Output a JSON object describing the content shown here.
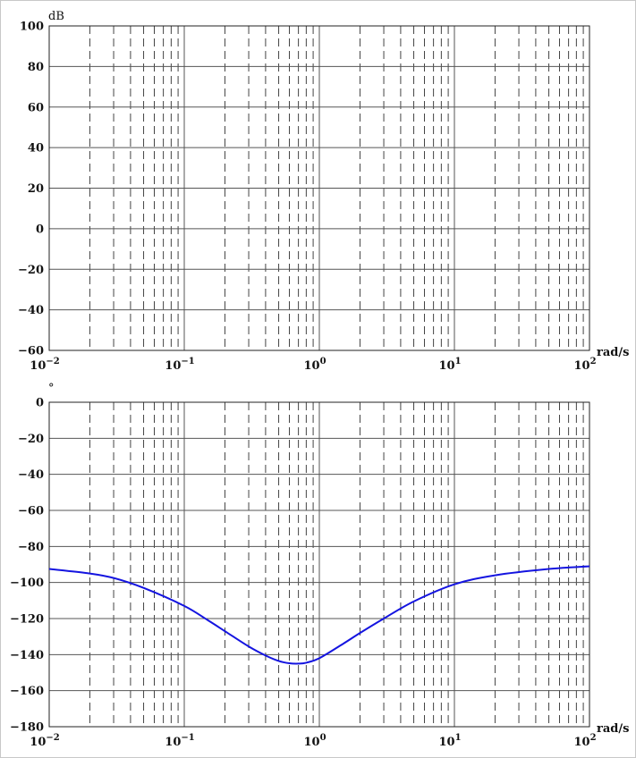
{
  "colors": {
    "series": "#1414e0",
    "grid_major": "#555555",
    "grid_minor": "#444444"
  },
  "chart_data": [
    {
      "type": "line",
      "name": "magnitude",
      "ylabel": "dB",
      "xlabel": "rad/s",
      "xscale": "log",
      "xlim": [
        0.01,
        100
      ],
      "ylim": [
        -60,
        100
      ],
      "yticks": [
        100,
        80,
        60,
        40,
        20,
        0,
        -20,
        -40,
        -60
      ],
      "ytick_labels": [
        "100",
        "80",
        "60",
        "40",
        "20",
        "0",
        "−20",
        "−40",
        "−60"
      ],
      "xticks": [
        0.01,
        0.1,
        1,
        10,
        100
      ],
      "xtick_labels": [
        {
          "base": "10",
          "exp": "−2"
        },
        {
          "base": "10",
          "exp": "−1"
        },
        {
          "base": "10",
          "exp": "0"
        },
        {
          "base": "10",
          "exp": "1"
        },
        {
          "base": "10",
          "exp": "2"
        }
      ],
      "grid": true,
      "series": []
    },
    {
      "type": "line",
      "name": "phase",
      "ylabel": "°",
      "xlabel": "rad/s",
      "xscale": "log",
      "xlim": [
        0.01,
        100
      ],
      "ylim": [
        -180,
        0
      ],
      "yticks": [
        0,
        -20,
        -40,
        -60,
        -80,
        -100,
        -120,
        -140,
        -160,
        -180
      ],
      "ytick_labels": [
        "0",
        "−20",
        "−40",
        "−60",
        "−80",
        "−100",
        "−120",
        "−140",
        "−160",
        "−180"
      ],
      "xticks": [
        0.01,
        0.1,
        1,
        10,
        100
      ],
      "xtick_labels": [
        {
          "base": "10",
          "exp": "−2"
        },
        {
          "base": "10",
          "exp": "−1"
        },
        {
          "base": "10",
          "exp": "0"
        },
        {
          "base": "10",
          "exp": "1"
        },
        {
          "base": "10",
          "exp": "2"
        }
      ],
      "grid": true,
      "series": [
        {
          "name": "phase",
          "x": [
            0.01,
            0.02,
            0.03,
            0.05,
            0.1,
            0.15,
            0.2,
            0.3,
            0.4,
            0.5,
            0.6,
            0.7,
            0.8,
            1,
            1.5,
            2,
            3,
            5,
            10,
            20,
            50,
            100
          ],
          "y": [
            -92.5,
            -95,
            -97.5,
            -103,
            -113,
            -121,
            -127,
            -135.5,
            -140.5,
            -143.5,
            -144.8,
            -145,
            -144.5,
            -142,
            -134,
            -128,
            -120,
            -110.5,
            -101,
            -96,
            -92.5,
            -91
          ]
        }
      ]
    }
  ]
}
